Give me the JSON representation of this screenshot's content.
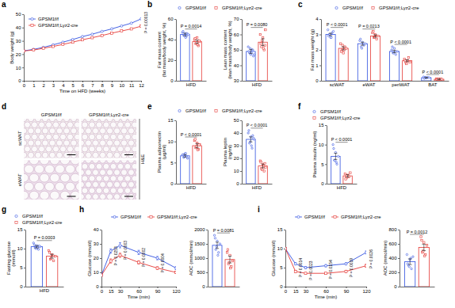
{
  "chart_data": [
    {
      "type": "line",
      "panel": "a",
      "x_label": "Time on HFD (weeks)",
      "y_label": "Body weight (g)",
      "x": [
        0,
        1,
        2,
        3,
        4,
        5,
        6,
        7,
        8,
        9,
        10,
        11,
        12
      ],
      "xlim": [
        0,
        12
      ],
      "xticks": [
        0,
        1,
        2,
        3,
        4,
        5,
        6,
        7,
        8,
        9,
        10,
        11,
        12
      ],
      "ylim": [
        0,
        50
      ],
      "yticks": [
        0,
        10,
        20,
        30,
        40,
        50
      ],
      "legend": "top-left",
      "series": [
        {
          "name": "GPSM1f/f",
          "color": "#3050e0",
          "marker": "circle",
          "values": [
            22.5,
            23.6,
            25.1,
            27.0,
            29.0,
            31.0,
            33.2,
            35.0,
            37.1,
            39.0,
            41.2,
            43.3,
            46.5
          ]
        },
        {
          "name": "GPSM1f/f;Lyz2-cre",
          "color": "#e53935",
          "marker": "square",
          "values": [
            22.4,
            23.1,
            24.4,
            25.8,
            27.3,
            29.0,
            30.8,
            32.4,
            34.0,
            35.8,
            37.4,
            39.0,
            41.0
          ]
        }
      ],
      "annotations": [
        null,
        null,
        null,
        null,
        null,
        null,
        null,
        null,
        null,
        null,
        null,
        null,
        "P = 0.00013"
      ]
    },
    {
      "type": "bar",
      "panel": "b",
      "y_label": "Fat mass content\n(fat mass/body weight, %)",
      "categories": [
        "HFD"
      ],
      "ylim": [
        0,
        60
      ],
      "yticks": [
        0,
        20,
        40,
        60
      ],
      "legend": "top",
      "series": [
        {
          "name": "GPSM1f/f",
          "color": "#3050e0",
          "marker": "circle",
          "values": [
            45
          ],
          "errors": [
            1.2
          ],
          "points": [
            [
              47,
              44,
              46,
              43,
              45,
              48,
              44,
              42,
              46,
              45
            ]
          ]
        },
        {
          "name": "GPSM1f/f;Lyz2-cre",
          "color": "#e53935",
          "marker": "square",
          "values": [
            38
          ],
          "errors": [
            1.6
          ],
          "points": [
            [
              40,
              36,
              42,
              34,
              38,
              41,
              37,
              35,
              39
            ]
          ]
        }
      ],
      "annotations": [
        "P = 0.0014"
      ]
    },
    {
      "type": "bar",
      "y_label": "Lean mass content\n(lean mass/body weight, %)",
      "categories": [
        "HFD"
      ],
      "ylim": [
        30,
        70
      ],
      "yticks": [
        30,
        40,
        50,
        60,
        70
      ],
      "series": [
        {
          "color": "#3050e0",
          "marker": "circle",
          "values": [
            49
          ],
          "errors": [
            1.3
          ],
          "points": [
            [
              52,
              48,
              47,
              50,
              46,
              49,
              51,
              48,
              50,
              47
            ]
          ]
        },
        {
          "color": "#e53935",
          "marker": "square",
          "values": [
            55
          ],
          "errors": [
            2.2
          ],
          "points": [
            [
              60,
              52,
              58,
              50,
              63,
              54,
              56,
              51,
              53
            ]
          ]
        }
      ],
      "annotations": [
        "P = 0.0080"
      ]
    },
    {
      "type": "bar",
      "panel": "c",
      "y_label": "Fat mass weight (g)",
      "categories": [
        "scWAT",
        "eWAT",
        "periWAT",
        "BAT"
      ],
      "ylim": [
        0,
        4
      ],
      "yticks": [
        0,
        1,
        2,
        3,
        4
      ],
      "legend": "top",
      "series": [
        {
          "name": "GPSM1f/f",
          "color": "#3050e0",
          "marker": "circle",
          "values": [
            3.0,
            2.4,
            1.9,
            0.2
          ],
          "errors": [
            0.08,
            0.1,
            0.08,
            0.02
          ],
          "points": [
            [
              3.3,
              3.0,
              2.8,
              3.1,
              3.2,
              2.9,
              3.0,
              2.8
            ],
            [
              2.6,
              2.2,
              2.5,
              2.3,
              2.4,
              2.7,
              2.1
            ],
            [
              2.0,
              1.8,
              2.1,
              1.7,
              1.9,
              2.2,
              1.8
            ],
            [
              0.25,
              0.2,
              0.18,
              0.22,
              0.2,
              0.15,
              0.23
            ]
          ]
        },
        {
          "name": "GPSM1f/f;Lyz2-cre",
          "color": "#e53935",
          "marker": "square",
          "values": [
            2.1,
            2.9,
            1.3,
            0.1
          ],
          "errors": [
            0.1,
            0.08,
            0.06,
            0.01
          ],
          "points": [
            [
              2.4,
              2.0,
              1.8,
              2.2,
              2.1,
              1.9,
              2.3,
              2.0
            ],
            [
              3.1,
              2.8,
              3.0,
              2.7,
              2.9,
              3.2,
              2.8
            ],
            [
              1.4,
              1.2,
              1.3,
              1.5,
              1.2,
              1.3,
              1.1
            ],
            [
              0.12,
              0.1,
              0.08,
              0.11,
              0.1,
              0.09,
              0.12
            ]
          ]
        }
      ],
      "annotations": [
        "P < 0.0001",
        "P = 0.0213",
        "P < 0.0001",
        "P < 0.0001"
      ]
    },
    {
      "type": "image",
      "panel": "d",
      "columns": [
        "GPSM1f/f",
        "GPSM1f/f;Lyz2-cre"
      ],
      "rows": [
        "scWAT",
        "eWAT"
      ],
      "side_label": "H&E"
    },
    {
      "type": "bar",
      "panel": "e",
      "y_label": "Plasma adiponectin\n(μg/ml)",
      "categories": [
        "HFD"
      ],
      "ylim": [
        0,
        15
      ],
      "yticks": [
        0,
        5,
        10,
        15
      ],
      "legend": "top",
      "series": [
        {
          "name": "GPSM1f/f",
          "color": "#3050e0",
          "marker": "circle",
          "values": [
            6.6
          ],
          "errors": [
            0.3
          ],
          "points": [
            [
              6.8,
              6.2,
              7.1,
              6.5,
              6.0,
              6.9,
              6.4,
              7.2,
              6.3
            ]
          ]
        },
        {
          "name": "GPSM1f/f;Lyz2-cre",
          "color": "#e53935",
          "marker": "square",
          "values": [
            9.0
          ],
          "errors": [
            0.5
          ],
          "points": [
            [
              10.2,
              8.5,
              9.6,
              8.1,
              9.3,
              10.5,
              8.8,
              8.0,
              9.2
            ]
          ]
        }
      ],
      "annotations": [
        "P < 0.0001"
      ]
    },
    {
      "type": "bar",
      "y_label": "Plasma leptin\n(ng/ml)",
      "categories": [
        "HFD"
      ],
      "ylim": [
        0,
        50
      ],
      "yticks": [
        0,
        10,
        20,
        30,
        40,
        50
      ],
      "series": [
        {
          "color": "#3050e0",
          "marker": "circle",
          "values": [
            35
          ],
          "errors": [
            2
          ],
          "points": [
            [
              40,
              32,
              37,
              28,
              36,
              42,
              33,
              30,
              38,
              35
            ]
          ]
        },
        {
          "color": "#e53935",
          "marker": "square",
          "values": [
            14
          ],
          "errors": [
            1.5
          ],
          "points": [
            [
              18,
              12,
              15,
              10,
              13,
              17,
              11,
              14,
              16
            ]
          ]
        }
      ],
      "annotations": [
        "P < 0.0001"
      ]
    },
    {
      "type": "bar",
      "panel": "f",
      "y_label": "Plasma insulin (ng/ml)",
      "categories": [
        "HFD"
      ],
      "ylim": [
        0,
        15
      ],
      "yticks": [
        0,
        5,
        10,
        15
      ],
      "legend": "top",
      "series": [
        {
          "name": "GPSM1f/f",
          "color": "#3050e0",
          "marker": "circle",
          "values": [
            7
          ],
          "errors": [
            0.8
          ],
          "points": [
            [
              10,
              6,
              8,
              5,
              7,
              9,
              6,
              5.5
            ]
          ]
        },
        {
          "name": "GPSM1f/f;Lyz2-cre",
          "color": "#e53935",
          "marker": "square",
          "values": [
            2
          ],
          "errors": [
            0.3
          ],
          "points": [
            [
              2.5,
              1.5,
              2.2,
              1.8,
              2.8,
              1.2,
              2.0
            ]
          ]
        }
      ],
      "annotations": [
        "P < 0.0001"
      ]
    },
    {
      "type": "bar",
      "panel": "g",
      "y_label": "Fasting glucose\n(mmol/l)",
      "categories": [
        "HFD"
      ],
      "ylim": [
        0,
        15
      ],
      "yticks": [
        0,
        5,
        10,
        15
      ],
      "legend": "top",
      "series": [
        {
          "name": "GPSM1f/f",
          "color": "#3050e0",
          "marker": "circle",
          "values": [
            10.5
          ],
          "errors": [
            0.3
          ],
          "points": [
            [
              11.5,
              10.2,
              10.8,
              9.8,
              10.5,
              11.0,
              10.0,
              10.3,
              10.7
            ]
          ]
        },
        {
          "name": "GPSM1f/f;Lyz2-cre",
          "color": "#e53935",
          "marker": "square",
          "values": [
            8
          ],
          "errors": [
            0.5
          ],
          "points": [
            [
              9.5,
              7.2,
              8.4,
              6.8,
              8.0,
              9.0,
              7.5
            ]
          ]
        }
      ],
      "annotations": [
        "P = 0.0003"
      ]
    },
    {
      "type": "line",
      "panel": "h",
      "x_label": "Time (min)",
      "y_label": "Glucose (mmol/l)",
      "x": [
        0,
        15,
        30,
        60,
        90,
        120
      ],
      "xlim": [
        0,
        120
      ],
      "xticks": [
        0,
        15,
        30,
        60,
        90,
        120
      ],
      "ylim": [
        0,
        40
      ],
      "yticks": [
        0,
        10,
        20,
        30,
        40
      ],
      "legend": "top",
      "series": [
        {
          "name": "GPSM1f/f",
          "color": "#3050e0",
          "marker": "circle",
          "values": [
            8,
            25,
            29,
            24,
            20,
            13
          ],
          "errors": [
            0.5,
            1.5,
            1.8,
            1.5,
            1.2,
            1.0
          ]
        },
        {
          "name": "GPSM1f/f;Lyz2-cre",
          "color": "#e53935",
          "marker": "square",
          "values": [
            8,
            18,
            22,
            17,
            13,
            10
          ],
          "errors": [
            0.5,
            1.5,
            1.5,
            1.2,
            1.0,
            0.8
          ]
        }
      ],
      "annotations": [
        null,
        "P = 0.0253",
        "P = 0.0003",
        "P = 0.0002",
        "P = 0.0004",
        null
      ]
    },
    {
      "type": "bar",
      "y_label": "AOC (mmol/min)",
      "categories": [
        null
      ],
      "ylim": [
        0,
        2000
      ],
      "yticks": [
        0,
        500,
        1000,
        1500,
        2000
      ],
      "series": [
        {
          "color": "#3050e0",
          "marker": "circle",
          "values": [
            1450
          ],
          "errors": [
            110
          ],
          "points": [
            [
              1800,
              1300,
              1600,
              1200,
              1500,
              1700,
              1400,
              1100
            ]
          ]
        },
        {
          "color": "#e53935",
          "marker": "square",
          "values": [
            950
          ],
          "errors": [
            120
          ],
          "points": [
            [
              1200,
              800,
              1100,
              700,
              900,
              1300,
              850,
              650
            ]
          ]
        }
      ],
      "annotations": [
        "P = 0.0081"
      ]
    },
    {
      "type": "line",
      "panel": "i",
      "x_label": "Time (min)",
      "y_label": "Glucose (mmol/l)",
      "x": [
        0,
        15,
        30,
        60,
        90,
        120
      ],
      "xlim": [
        0,
        120
      ],
      "xticks": [
        0,
        15,
        30,
        60,
        90,
        120
      ],
      "ylim": [
        0,
        15
      ],
      "yticks": [
        0,
        5,
        10,
        15
      ],
      "legend": "top",
      "series": [
        {
          "name": "GPSM1f/f",
          "color": "#3050e0",
          "marker": "circle",
          "values": [
            10,
            6,
            5,
            5.5,
            6,
            9
          ],
          "errors": [
            0.3,
            0.3,
            0.3,
            0.3,
            0.3,
            0.4
          ]
        },
        {
          "name": "GPSM1f/f;Lyz2-cre",
          "color": "#e53935",
          "marker": "square",
          "values": [
            10,
            4,
            3.5,
            3.5,
            4,
            5.5
          ],
          "errors": [
            0.3,
            0.3,
            0.2,
            0.2,
            0.3,
            0.4
          ]
        }
      ],
      "annotations": [
        null,
        "P = 0.0014",
        "P = 0.0023",
        "P = 0.0154",
        "P = 0.0019",
        "P = 0.0026"
      ]
    },
    {
      "type": "bar",
      "y_label": "AOC (mmol/min)",
      "categories": [
        null
      ],
      "ylim": [
        0,
        800
      ],
      "yticks": [
        0,
        200,
        400,
        600,
        800
      ],
      "series": [
        {
          "color": "#3050e0",
          "marker": "circle",
          "values": [
            350
          ],
          "errors": [
            40
          ],
          "points": [
            [
              450,
              300,
              380,
              250,
              420,
              320,
              280,
              400
            ]
          ]
        },
        {
          "color": "#e53935",
          "marker": "square",
          "values": [
            550
          ],
          "errors": [
            45
          ],
          "points": [
            [
              700,
              480,
              620,
              450,
              580,
              650,
              500,
              430
            ]
          ]
        }
      ],
      "annotations": [
        "P = 0.0012"
      ]
    }
  ]
}
